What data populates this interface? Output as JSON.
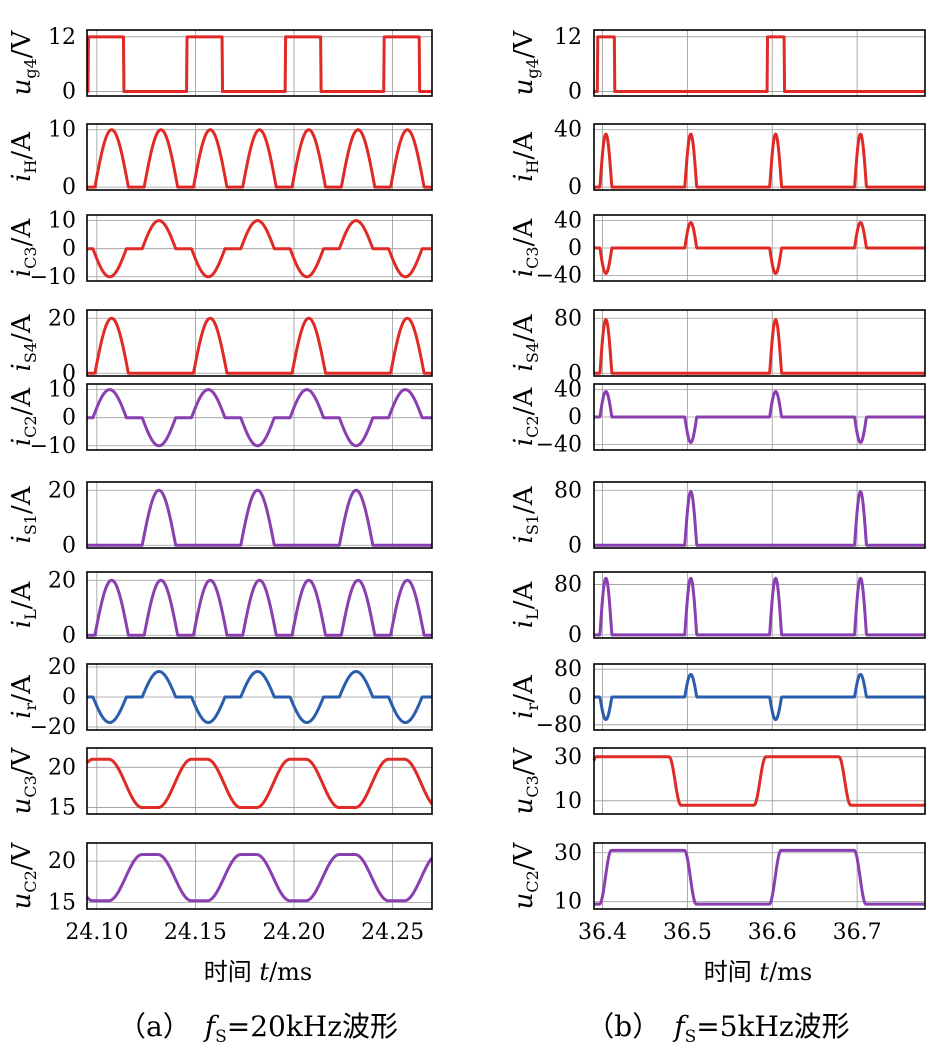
{
  "colors": {
    "red": "#e02a26",
    "purple": "#8a3fb0",
    "blue": "#2a5db0",
    "grid": "#9a9a9a"
  },
  "panel_a": {
    "caption_num": "（a）",
    "caption_f": "f",
    "caption_sub": "S",
    "caption_rest": "=20kHz波形",
    "xlabel_prefix": "时间 ",
    "xlabel_var": "t",
    "xlabel_unit": "/ms",
    "xticks": [
      "24.10",
      "24.15",
      "24.20",
      "24.25"
    ]
  },
  "panel_b": {
    "caption_num": "（b）",
    "caption_f": "f",
    "caption_sub": "S",
    "caption_rest": "=5kHz波形",
    "xlabel_prefix": "时间 ",
    "xlabel_var": "t",
    "xlabel_unit": "/ms",
    "xticks": [
      "36.4",
      "36.5",
      "36.6",
      "36.7"
    ]
  },
  "ylabels": [
    {
      "var": "u",
      "sub": "g4",
      "unit": "/V"
    },
    {
      "var": "i",
      "sub": "H",
      "unit": "/A"
    },
    {
      "var": "i",
      "sub": "C3",
      "unit": "/A"
    },
    {
      "var": "i",
      "sub": "S4",
      "unit": "/A"
    },
    {
      "var": "i",
      "sub": "C2",
      "unit": "/A"
    },
    {
      "var": "i",
      "sub": "S1",
      "unit": "/A"
    },
    {
      "var": "i",
      "sub": "L",
      "unit": "/A"
    },
    {
      "var": "i",
      "sub": "r",
      "unit": "/A"
    },
    {
      "var": "u",
      "sub": "C3",
      "unit": "/V"
    },
    {
      "var": "u",
      "sub": "C2",
      "unit": "/V"
    }
  ],
  "chart_data": [
    {
      "panel": "a",
      "type": "line",
      "xlim": [
        24.095,
        24.27
      ],
      "xlabel": "时间 t/ms",
      "signals": [
        {
          "label": "ug4/V",
          "color": "red",
          "ylim": [
            -1,
            13.5
          ],
          "yticks": [
            "0",
            "12"
          ],
          "ytick_values": [
            0,
            12
          ],
          "kind": "pulse",
          "period": 0.05,
          "phase": 24.0955,
          "high": 12,
          "low": 0,
          "duty": 0.36
        },
        {
          "label": "iH/A",
          "color": "red",
          "ylim": [
            -0.5,
            11
          ],
          "yticks": [
            "0",
            "10"
          ],
          "ytick_values": [
            0,
            10
          ],
          "kind": "halfsine",
          "period": 0.025,
          "phase": 24.099,
          "amp": 10,
          "base": 0,
          "on": 0.68
        },
        {
          "label": "iC3/A",
          "color": "red",
          "ylim": [
            -11.5,
            12
          ],
          "yticks": [
            "−10",
            "0",
            "10"
          ],
          "ytick_values": [
            -10,
            0,
            10
          ],
          "kind": "altsine",
          "period": 0.05,
          "phase": 24.098,
          "amp": 10,
          "on": 0.34,
          "first_sign": -1
        },
        {
          "label": "iS4/A",
          "color": "red",
          "ylim": [
            -1,
            23
          ],
          "yticks": [
            "0",
            "20"
          ],
          "ytick_values": [
            0,
            20
          ],
          "kind": "halfsine",
          "period": 0.05,
          "phase": 24.099,
          "amp": 20,
          "base": 0,
          "on": 0.34
        },
        {
          "label": "iC2/A",
          "color": "purple",
          "ylim": [
            -11.5,
            12
          ],
          "yticks": [
            "−10",
            "0",
            "10"
          ],
          "ytick_values": [
            -10,
            0,
            10
          ],
          "kind": "altsine",
          "period": 0.05,
          "phase": 24.098,
          "amp": 10,
          "on": 0.34,
          "first_sign": 1
        },
        {
          "label": "iS1/A",
          "color": "purple",
          "ylim": [
            -1,
            23
          ],
          "yticks": [
            "0",
            "20"
          ],
          "ytick_values": [
            0,
            20
          ],
          "kind": "halfsine",
          "period": 0.05,
          "phase": 24.123,
          "amp": 20,
          "base": 0,
          "on": 0.34
        },
        {
          "label": "iL/A",
          "color": "purple",
          "ylim": [
            -1,
            23
          ],
          "yticks": [
            "0",
            "20"
          ],
          "ytick_values": [
            0,
            20
          ],
          "kind": "halfsine",
          "period": 0.025,
          "phase": 24.099,
          "amp": 20,
          "base": 0,
          "on": 0.68
        },
        {
          "label": "ir/A",
          "color": "blue",
          "ylim": [
            -22,
            22
          ],
          "yticks": [
            "−20",
            "0",
            "20"
          ],
          "ytick_values": [
            -20,
            0,
            20
          ],
          "kind": "altsine",
          "period": 0.05,
          "phase": 24.098,
          "amp": 17,
          "on": 0.34,
          "first_sign": -1
        },
        {
          "label": "uC3/V",
          "color": "red",
          "ylim": [
            14.2,
            22.4
          ],
          "yticks": [
            "15",
            "20"
          ],
          "ytick_values": [
            15,
            20
          ],
          "kind": "trap",
          "period": 0.05,
          "phase": 24.081,
          "high": 21,
          "low": 15,
          "ramp": 0.017,
          "hold": 0.008
        },
        {
          "label": "uC2/V",
          "color": "purple",
          "ylim": [
            14.2,
            22.2
          ],
          "yticks": [
            "15",
            "20"
          ],
          "ytick_values": [
            15,
            20
          ],
          "kind": "trap",
          "period": 0.05,
          "phase": 24.106,
          "high": 20.8,
          "low": 15.2,
          "ramp": 0.017,
          "hold": 0.008
        }
      ]
    },
    {
      "panel": "b",
      "type": "line",
      "xlim": [
        36.39,
        36.78
      ],
      "xlabel": "时间 t/ms",
      "signals": [
        {
          "label": "ug4/V",
          "color": "red",
          "ylim": [
            -1,
            13.5
          ],
          "yticks": [
            "0",
            "12"
          ],
          "ytick_values": [
            0,
            12
          ],
          "kind": "pulse",
          "period": 0.2,
          "phase": 36.394,
          "high": 12,
          "low": 0,
          "duty": 0.1
        },
        {
          "label": "iH/A",
          "color": "red",
          "ylim": [
            -2,
            44
          ],
          "yticks": [
            "0",
            "40"
          ],
          "ytick_values": [
            0,
            40
          ],
          "kind": "halfsine",
          "period": 0.1,
          "phase": 36.397,
          "amp": 37,
          "base": 0,
          "on": 0.14
        },
        {
          "label": "iC3/A",
          "color": "red",
          "ylim": [
            -48,
            48
          ],
          "yticks": [
            "−40",
            "0",
            "40"
          ],
          "ytick_values": [
            -40,
            0,
            40
          ],
          "kind": "altsine",
          "period": 0.2,
          "phase": 36.397,
          "amp": 37,
          "on": 0.07,
          "first_sign": -1
        },
        {
          "label": "iS4/A",
          "color": "red",
          "ylim": [
            -4,
            92
          ],
          "yticks": [
            "0",
            "80"
          ],
          "ytick_values": [
            0,
            80
          ],
          "kind": "halfsine",
          "period": 0.2,
          "phase": 36.397,
          "amp": 78,
          "base": 0,
          "on": 0.07
        },
        {
          "label": "iC2/A",
          "color": "purple",
          "ylim": [
            -48,
            48
          ],
          "yticks": [
            "−40",
            "0",
            "40"
          ],
          "ytick_values": [
            -40,
            0,
            40
          ],
          "kind": "altsine",
          "period": 0.2,
          "phase": 36.397,
          "amp": 37,
          "on": 0.07,
          "first_sign": 1
        },
        {
          "label": "iS1/A",
          "color": "purple",
          "ylim": [
            -4,
            92
          ],
          "yticks": [
            "0",
            "80"
          ],
          "ytick_values": [
            0,
            80
          ],
          "kind": "halfsine",
          "period": 0.2,
          "phase": 36.497,
          "amp": 78,
          "base": 0,
          "on": 0.07
        },
        {
          "label": "iL/A",
          "color": "purple",
          "ylim": [
            -5,
            100
          ],
          "yticks": [
            "0",
            "80"
          ],
          "ytick_values": [
            0,
            80
          ],
          "kind": "halfsine",
          "period": 0.1,
          "phase": 36.397,
          "amp": 90,
          "base": 0,
          "on": 0.14
        },
        {
          "label": "ir/A",
          "color": "blue",
          "ylim": [
            -95,
            95
          ],
          "yticks": [
            "−80",
            "0",
            "80"
          ],
          "ytick_values": [
            -80,
            0,
            80
          ],
          "kind": "altsine",
          "period": 0.2,
          "phase": 36.397,
          "amp": 65,
          "on": 0.07,
          "first_sign": -1
        },
        {
          "label": "uC3/V",
          "color": "red",
          "ylim": [
            4,
            34
          ],
          "yticks": [
            "10",
            "30"
          ],
          "ytick_values": [
            10,
            30
          ],
          "kind": "trap",
          "period": 0.2,
          "phase": 36.3785,
          "high": 30,
          "low": 8,
          "ramp": 0.014,
          "hold": 0.086
        },
        {
          "label": "uC2/V",
          "color": "purple",
          "ylim": [
            7,
            34
          ],
          "yticks": [
            "10",
            "30"
          ],
          "ytick_values": [
            10,
            30
          ],
          "kind": "trap",
          "period": 0.2,
          "phase": 36.3965,
          "high": 31,
          "low": 9,
          "ramp": 0.014,
          "hold": 0.086
        }
      ]
    }
  ]
}
